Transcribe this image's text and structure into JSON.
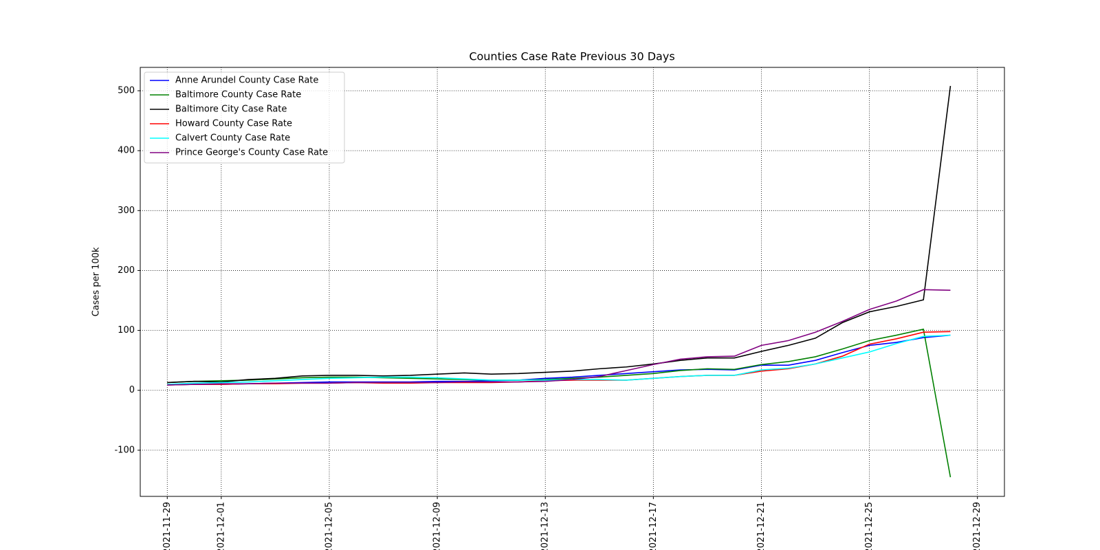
{
  "chart_data": {
    "type": "line",
    "title": "Counties Case Rate Previous 30 Days",
    "y_label": "Cases per 100k",
    "x": [
      "2021-11-29",
      "2021-11-30",
      "2021-12-01",
      "2021-12-02",
      "2021-12-03",
      "2021-12-04",
      "2021-12-05",
      "2021-12-06",
      "2021-12-07",
      "2021-12-08",
      "2021-12-09",
      "2021-12-10",
      "2021-12-11",
      "2021-12-12",
      "2021-12-13",
      "2021-12-14",
      "2021-12-15",
      "2021-12-16",
      "2021-12-17",
      "2021-12-18",
      "2021-12-19",
      "2021-12-20",
      "2021-12-21",
      "2021-12-22",
      "2021-12-23",
      "2021-12-24",
      "2021-12-25",
      "2021-12-26",
      "2021-12-27",
      "2021-12-28"
    ],
    "series": [
      {
        "name": "Anne Arundel County Case Rate",
        "color": "#0000ff",
        "values": [
          9,
          10,
          10,
          11,
          12,
          13,
          14,
          14,
          14,
          14,
          15,
          15,
          16,
          17,
          20,
          22,
          25,
          28,
          31,
          34,
          35,
          34,
          42,
          42,
          50,
          63,
          75,
          80,
          88,
          92
        ]
      },
      {
        "name": "Baltimore County Case Rate",
        "color": "#008000",
        "values": [
          13,
          15,
          16,
          17,
          19,
          21,
          22,
          22,
          21,
          20,
          19,
          18,
          17,
          17,
          18,
          20,
          22,
          25,
          28,
          33,
          36,
          35,
          43,
          48,
          56,
          69,
          83,
          92,
          102,
          -145
        ]
      },
      {
        "name": "Baltimore City Case Rate",
        "color": "#000000",
        "values": [
          13,
          15,
          14,
          18,
          20,
          24,
          25,
          25,
          24,
          25,
          27,
          29,
          27,
          28,
          30,
          32,
          36,
          39,
          44,
          50,
          54,
          54,
          65,
          75,
          87,
          113,
          131,
          140,
          151,
          508
        ]
      },
      {
        "name": "Howard County Case Rate",
        "color": "#ff0000",
        "values": [
          9,
          10,
          10,
          11,
          11,
          12,
          12,
          13,
          12,
          12,
          13,
          13,
          13,
          14,
          16,
          17,
          17,
          17,
          20,
          23,
          25,
          25,
          32,
          36,
          44,
          57,
          77,
          86,
          97,
          98
        ]
      },
      {
        "name": "Calvert County Case Rate",
        "color": "#00ffff",
        "values": [
          10,
          12,
          13,
          14,
          16,
          18,
          20,
          21,
          22,
          22,
          21,
          19,
          17,
          17,
          17,
          18,
          18,
          17,
          20,
          23,
          25,
          25,
          34,
          37,
          44,
          54,
          64,
          78,
          90,
          92
        ]
      },
      {
        "name": "Prince George's County Case Rate",
        "color": "#800080",
        "values": [
          9,
          10,
          11,
          11,
          12,
          12,
          12,
          13,
          13,
          13,
          13,
          14,
          14,
          14,
          15,
          18,
          23,
          33,
          43,
          52,
          56,
          57,
          75,
          83,
          97,
          115,
          135,
          149,
          168,
          167
        ]
      }
    ],
    "xlim": [
      "2021-11-28",
      "2021-12-30"
    ],
    "xticks": [
      "2021-11-29",
      "2021-12-01",
      "2021-12-05",
      "2021-12-09",
      "2021-12-13",
      "2021-12-17",
      "2021-12-21",
      "2021-12-25",
      "2021-12-29"
    ],
    "ylim": [
      -177,
      539
    ],
    "yticks": [
      -100,
      0,
      100,
      200,
      300,
      400,
      500
    ],
    "grid": true,
    "legend": "upper left"
  }
}
